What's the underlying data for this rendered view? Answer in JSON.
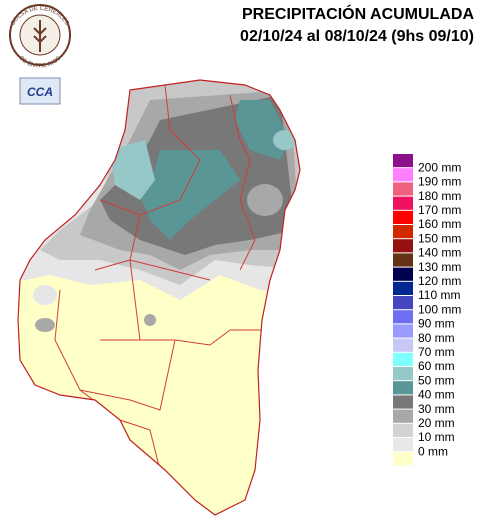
{
  "header": {
    "title": "PRECIPITACIÓN ACUMULADA",
    "subtitle": "02/10/24 al 08/10/24 (9hs 09/10)"
  },
  "logo": {
    "top_text": "BOLSA DE CEREALES",
    "bottom_text": "DE ENTRE RIOS",
    "badge": "CCA"
  },
  "legend": [
    {
      "label": "200 mm",
      "color": "#8c0f8c"
    },
    {
      "label": "190 mm",
      "color": "#ff80ff"
    },
    {
      "label": "180 mm",
      "color": "#f0607f"
    },
    {
      "label": "170 mm",
      "color": "#f01060"
    },
    {
      "label": "160 mm",
      "color": "#ff0000"
    },
    {
      "label": "150 mm",
      "color": "#d22800"
    },
    {
      "label": "140 mm",
      "color": "#961010"
    },
    {
      "label": "130 mm",
      "color": "#643214"
    },
    {
      "label": "120 mm",
      "color": "#000050"
    },
    {
      "label": "110 mm",
      "color": "#002890"
    },
    {
      "label": "100 mm",
      "color": "#4646c0"
    },
    {
      "label": "90 mm",
      "color": "#6e6ef5"
    },
    {
      "label": "80 mm",
      "color": "#9a9aff"
    },
    {
      "label": "70 mm",
      "color": "#c8c8f8"
    },
    {
      "label": "60 mm",
      "color": "#80ffff"
    },
    {
      "label": "50 mm",
      "color": "#96c8c8"
    },
    {
      "label": "40 mm",
      "color": "#5a9696"
    },
    {
      "label": "30 mm",
      "color": "#787878"
    },
    {
      "label": "20 mm",
      "color": "#a8a8a8"
    },
    {
      "label": "10 mm",
      "color": "#d2d2d2"
    },
    {
      "label": "0 mm",
      "color": "#e8e8e8"
    },
    {
      "label": "",
      "color": "#ffffc8"
    }
  ]
}
